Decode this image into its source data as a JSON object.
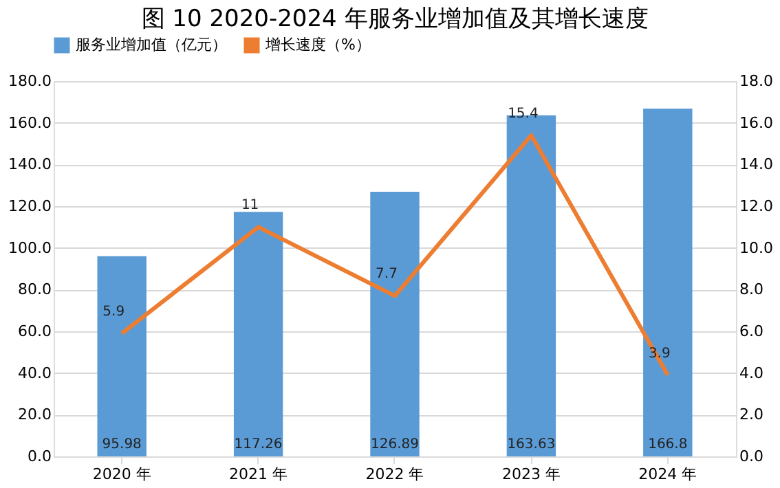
{
  "chart_data": {
    "type": "bar",
    "title": "图 10  2020-2024 年服务业增加值及其增长速度",
    "categories": [
      "2020 年",
      "2021 年",
      "2022 年",
      "2023 年",
      "2024 年"
    ],
    "series": [
      {
        "name": "服务业增加值（亿元）",
        "color": "#5b9bd5",
        "values": [
          95.98,
          117.26,
          126.89,
          163.63,
          166.8
        ]
      },
      {
        "name": "增长速度（%）",
        "type": "line",
        "axis": "y2",
        "color": "#ed7d31",
        "values": [
          5.9,
          11,
          7.7,
          15.4,
          3.9
        ]
      }
    ],
    "ylim": [
      0,
      180
    ],
    "yticks": [
      {
        "value": 0,
        "label": "0.0"
      },
      {
        "value": 20,
        "label": "20.0"
      },
      {
        "value": 40,
        "label": "40.0"
      },
      {
        "value": 60,
        "label": "60.0"
      },
      {
        "value": 80,
        "label": "80.0"
      },
      {
        "value": 100,
        "label": "100.0"
      },
      {
        "value": 120,
        "label": "120.0"
      },
      {
        "value": 140,
        "label": "140.0"
      },
      {
        "value": 160,
        "label": "160.0"
      },
      {
        "value": 180,
        "label": "180.0"
      }
    ],
    "y2lim": [
      0,
      18
    ],
    "y2ticks": [
      {
        "value": 0,
        "label": "0.0"
      },
      {
        "value": 2,
        "label": "2.0"
      },
      {
        "value": 4,
        "label": "4.0"
      },
      {
        "value": 6,
        "label": "6.0"
      },
      {
        "value": 8,
        "label": "8.0"
      },
      {
        "value": 10,
        "label": "10.0"
      },
      {
        "value": 12,
        "label": "12.0"
      },
      {
        "value": 14,
        "label": "14.0"
      },
      {
        "value": 16,
        "label": "16.0"
      },
      {
        "value": 18,
        "label": "18.0"
      }
    ],
    "grid": "y",
    "legend": "top",
    "data_labels": true,
    "line_style": "solid"
  }
}
